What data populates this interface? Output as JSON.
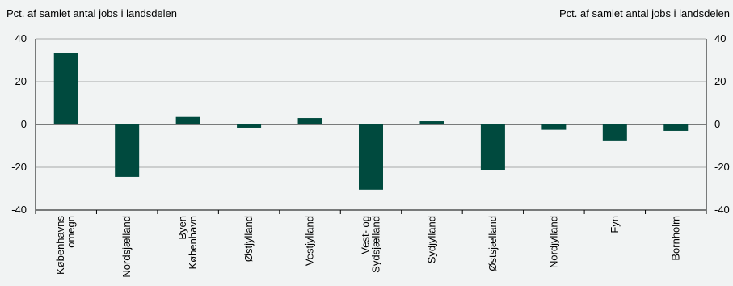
{
  "chart_data": {
    "type": "bar",
    "ylabel_left": "Pct. af samlet antal jobs i landsdelen",
    "ylabel_right": "Pct. af samlet antal jobs i landsdelen",
    "ylim": [
      -40,
      40
    ],
    "yticks": [
      40,
      20,
      0,
      -20,
      -40
    ],
    "grid": true,
    "bar_color": "#004a3e",
    "categories": [
      [
        "Københavns",
        "omegn"
      ],
      [
        "Nordsjælland"
      ],
      [
        "Byen",
        "København"
      ],
      [
        "Østjylland"
      ],
      [
        "Vestjylland"
      ],
      [
        "Vest- og",
        "Sydsjælland"
      ],
      [
        "Sydjylland"
      ],
      [
        "Østsjælland"
      ],
      [
        "Nordjylland"
      ],
      [
        "Fyn"
      ],
      [
        "Bornholm"
      ]
    ],
    "values": [
      33.5,
      -24.5,
      3.5,
      -1.5,
      3,
      -30.5,
      1.5,
      -21.5,
      -2.5,
      -7.5,
      -3
    ]
  }
}
